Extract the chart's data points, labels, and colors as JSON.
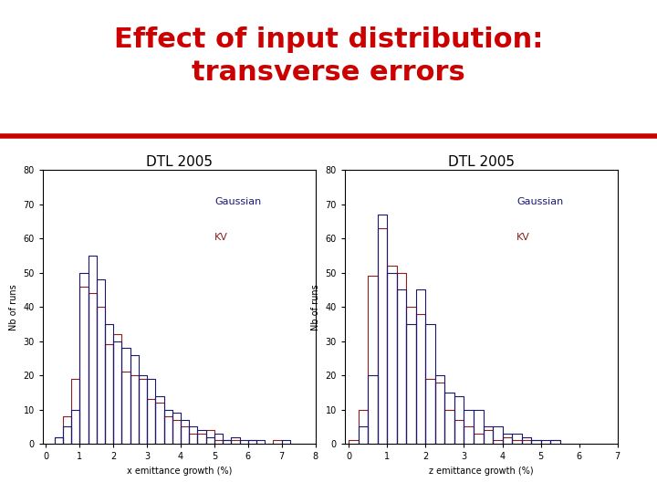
{
  "title_line1": "Effect of input distribution:",
  "title_line2": "transverse errors",
  "title_color": "#cc0000",
  "title_fontsize": 22,
  "red_line_color": "#cc0000",
  "subtitle": "DTL 2005",
  "subtitle_fontsize": 11,
  "plot1_xlabel": "x emittance growth (%)",
  "plot2_xlabel": "z emittance growth (%)",
  "ylabel": "Nb of runs",
  "ylim": [
    0,
    80
  ],
  "yticks": [
    0,
    10,
    20,
    30,
    40,
    50,
    60,
    70,
    80
  ],
  "xlim1": [
    -0.1,
    8
  ],
  "xticks1": [
    0,
    1,
    2,
    3,
    4,
    5,
    6,
    7,
    8
  ],
  "xlim2": [
    -0.1,
    7
  ],
  "xticks2": [
    0,
    1,
    2,
    3,
    4,
    5,
    6,
    7
  ],
  "gaussian_color": "#191970",
  "kv_color": "#8b2020",
  "legend_gaussian": "Gaussian",
  "legend_kv": "KV",
  "legend_fontsize": 8,
  "axis_fontsize": 7,
  "tick_fontsize": 7,
  "gaussian_bins1": [
    0.25,
    0.5,
    0.75,
    1.0,
    1.25,
    1.5,
    1.75,
    2.0,
    2.25,
    2.5,
    2.75,
    3.0,
    3.25,
    3.5,
    3.75,
    4.0,
    4.25,
    4.5,
    4.75,
    5.0,
    5.25,
    5.5,
    5.75,
    6.0,
    6.25,
    6.5,
    6.75,
    7.0,
    7.25,
    7.5
  ],
  "gaussian_vals1": [
    2,
    5,
    10,
    50,
    55,
    48,
    35,
    30,
    28,
    26,
    20,
    19,
    14,
    10,
    9,
    7,
    5,
    4,
    2,
    3,
    1,
    2,
    1,
    1,
    1,
    0,
    0,
    1,
    0,
    0
  ],
  "kv_bins1": [
    0.25,
    0.5,
    0.75,
    1.0,
    1.25,
    1.5,
    1.75,
    2.0,
    2.25,
    2.5,
    2.75,
    3.0,
    3.25,
    3.5,
    3.75,
    4.0,
    4.25,
    4.5,
    4.75,
    5.0,
    5.25,
    5.5,
    5.75,
    6.0,
    6.25,
    6.5,
    6.75,
    7.0,
    7.25
  ],
  "kv_vals1": [
    2,
    8,
    19,
    46,
    44,
    40,
    29,
    32,
    21,
    20,
    19,
    13,
    12,
    8,
    7,
    5,
    3,
    3,
    4,
    1,
    1,
    1,
    0,
    1,
    0,
    0,
    1,
    0,
    0
  ],
  "gaussian_bins2": [
    0.25,
    0.5,
    0.75,
    1.0,
    1.25,
    1.5,
    1.75,
    2.0,
    2.25,
    2.5,
    2.75,
    3.0,
    3.25,
    3.5,
    3.75,
    4.0,
    4.25,
    4.5,
    4.75,
    5.0,
    5.25,
    5.5,
    5.75,
    6.0,
    6.25
  ],
  "gaussian_vals2": [
    5,
    20,
    67,
    50,
    45,
    35,
    45,
    35,
    20,
    15,
    14,
    10,
    10,
    5,
    5,
    3,
    3,
    2,
    1,
    1,
    1,
    0,
    0,
    0,
    0
  ],
  "kv_bins2": [
    0.0,
    0.25,
    0.5,
    0.75,
    1.0,
    1.25,
    1.5,
    1.75,
    2.0,
    2.25,
    2.5,
    2.75,
    3.0,
    3.25,
    3.5,
    3.75,
    4.0,
    4.25,
    4.5,
    4.75,
    5.0,
    5.25,
    5.5,
    5.75,
    6.0
  ],
  "kv_vals2": [
    1,
    10,
    49,
    63,
    52,
    50,
    40,
    38,
    19,
    18,
    10,
    7,
    5,
    3,
    4,
    1,
    2,
    1,
    1,
    1,
    0,
    1,
    0,
    0,
    0
  ],
  "bg_color": "#ffffff"
}
